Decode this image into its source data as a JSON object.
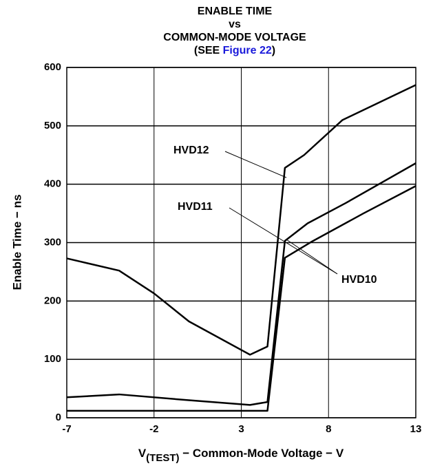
{
  "chart_data": {
    "type": "line",
    "title": [
      "ENABLE TIME",
      "vs",
      "COMMON-MODE VOLTAGE"
    ],
    "subtitle": [
      "(SEE ",
      "Figure 22",
      ")"
    ],
    "xlabel": [
      "V",
      "(TEST)",
      " − Common-Mode Voltage − V"
    ],
    "ylabel": "Enable Time − ns",
    "xlim": [
      -7,
      13
    ],
    "ylim": [
      0,
      600
    ],
    "xticks": [
      -7,
      -2,
      3,
      8,
      13
    ],
    "yticks": [
      0,
      100,
      200,
      300,
      400,
      500,
      600
    ],
    "grid": true,
    "series": [
      {
        "name": "HVD12",
        "color": "#000000",
        "x": [
          -7,
          -4,
          -2,
          0,
          3.5,
          4.5,
          5.5,
          6.6,
          8.8,
          13
        ],
        "values": [
          273,
          252,
          213,
          165,
          108,
          122,
          428,
          450,
          510,
          570
        ]
      },
      {
        "name": "HVD11",
        "color": "#000000",
        "x": [
          -7,
          -4,
          0,
          3.5,
          4.5,
          5.5,
          6.8,
          9,
          13
        ],
        "values": [
          35,
          40,
          30,
          22,
          27,
          303,
          333,
          368,
          436
        ]
      },
      {
        "name": "HVD10",
        "color": "#000000",
        "x": [
          -7,
          4.5,
          5.5,
          7,
          10,
          13
        ],
        "values": [
          12,
          12,
          274,
          301,
          350,
          397
        ]
      }
    ]
  }
}
